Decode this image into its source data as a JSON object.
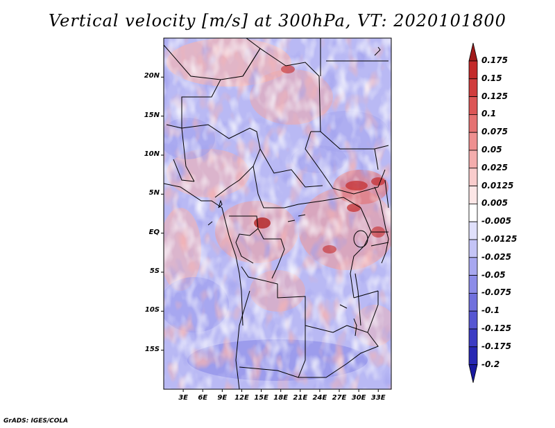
{
  "title": "Vertical velocity [m/s] at 300hPa, VT: 2020101800",
  "credit": "GrADS: IGES/COLA",
  "map": {
    "lon_range": [
      0,
      35
    ],
    "lat_range": [
      -20,
      25
    ],
    "lat_ticks": [
      {
        "value": 20,
        "label": "20N"
      },
      {
        "value": 15,
        "label": "15N"
      },
      {
        "value": 10,
        "label": "10N"
      },
      {
        "value": 5,
        "label": "5N"
      },
      {
        "value": 0,
        "label": "EQ"
      },
      {
        "value": -5,
        "label": "5S"
      },
      {
        "value": -10,
        "label": "10S"
      },
      {
        "value": -15,
        "label": "15S"
      }
    ],
    "lon_ticks": [
      {
        "value": 3,
        "label": "3E"
      },
      {
        "value": 6,
        "label": "6E"
      },
      {
        "value": 9,
        "label": "9E"
      },
      {
        "value": 12,
        "label": "12E"
      },
      {
        "value": 15,
        "label": "15E"
      },
      {
        "value": 18,
        "label": "18E"
      },
      {
        "value": 21,
        "label": "21E"
      },
      {
        "value": 24,
        "label": "24E"
      },
      {
        "value": 27,
        "label": "27E"
      },
      {
        "value": 30,
        "label": "30E"
      },
      {
        "value": 33,
        "label": "33E"
      }
    ]
  },
  "colorbar": {
    "levels": [
      {
        "label": "0.175",
        "color": "#b22222"
      },
      {
        "label": "0.15",
        "color": "#c42a2a"
      },
      {
        "label": "0.125",
        "color": "#d03c3c"
      },
      {
        "label": "0.1",
        "color": "#dc5656"
      },
      {
        "label": "0.075",
        "color": "#e57272"
      },
      {
        "label": "0.05",
        "color": "#ee9090"
      },
      {
        "label": "0.025",
        "color": "#f4adad"
      },
      {
        "label": "0.0125",
        "color": "#f9cccc"
      },
      {
        "label": "0.005",
        "color": "#fce6e6"
      },
      {
        "label": "-0.005",
        "color": "#ffffff"
      },
      {
        "label": "-0.0125",
        "color": "#e0e0fb"
      },
      {
        "label": "-0.025",
        "color": "#c4c4f6"
      },
      {
        "label": "-0.05",
        "color": "#a8a8f0"
      },
      {
        "label": "-0.075",
        "color": "#8c8ce8"
      },
      {
        "label": "-0.1",
        "color": "#7070dd"
      },
      {
        "label": "-0.125",
        "color": "#5656d2"
      },
      {
        "label": "-0.175",
        "color": "#3c3cc4"
      },
      {
        "label": "-0.2",
        "color": "#2828b4"
      }
    ],
    "top_color": "#a01a1a",
    "bottom_color": "#1a1aa0"
  }
}
